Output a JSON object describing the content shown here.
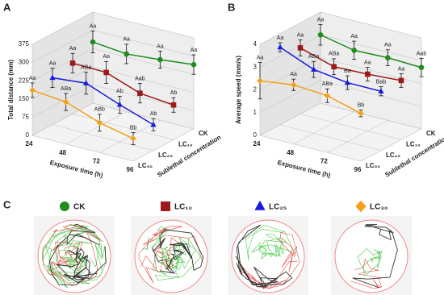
{
  "chart_data": [
    {
      "type": "line3d",
      "panel_label": "A",
      "y_label": "Total distance (mm)",
      "x_label": "Exposure time (h)",
      "depth_label": "Sublethal concentration",
      "x": [
        24,
        48,
        72,
        96
      ],
      "xlim": [
        24,
        96
      ],
      "xticks": [
        24,
        48,
        72,
        96
      ],
      "depth_categories": [
        "LC₃₀",
        "LC₂₅",
        "LC₁₀",
        "CK"
      ],
      "ylim": [
        0,
        375
      ],
      "yticks": [
        0,
        75,
        150,
        225,
        300,
        375
      ],
      "grid": true,
      "series": [
        {
          "name": "CK",
          "color": "#1e8c1e",
          "marker": "circle",
          "values": [
            252,
            238,
            250,
            265
          ],
          "errors": [
            45,
            40,
            35,
            40
          ],
          "letters": [
            "Aa",
            "Aa",
            "Aa",
            "Aa"
          ]
        },
        {
          "name": "LC₁₀",
          "color": "#9e1a1a",
          "marker": "square",
          "values": [
            209,
            206,
            156,
            143
          ],
          "errors": [
            40,
            45,
            40,
            30
          ],
          "letters": [
            "Aa",
            "Aa",
            "Aab",
            "Ab"
          ]
        },
        {
          "name": "LC₂₅",
          "color": "#1a1ae0",
          "marker": "triangle",
          "values": [
            193,
            206,
            153,
            106
          ],
          "errors": [
            40,
            45,
            35,
            25
          ],
          "letters": [
            "Aa",
            "ABa",
            "Ab",
            "Ab"
          ]
        },
        {
          "name": "LC₃₀",
          "color": "#f5a01a",
          "marker": "diamond",
          "values": [
            186,
            173,
            123,
            93
          ],
          "errors": [
            30,
            35,
            35,
            25
          ],
          "letters": [
            "Aa",
            "ABa",
            "ABb",
            "Bb"
          ]
        }
      ]
    },
    {
      "type": "line3d",
      "panel_label": "B",
      "y_label": "Average speed (mm/s)",
      "x_label": "Exposure time (h)",
      "depth_label": "Sublethal concentration",
      "x": [
        24,
        48,
        72,
        96
      ],
      "xlim": [
        24,
        96
      ],
      "xticks": [
        24,
        48,
        72,
        96
      ],
      "depth_categories": [
        "LC₃₀",
        "LC₂₅",
        "LC₁₀",
        "CK"
      ],
      "ylim": [
        0,
        4
      ],
      "yticks": [
        0,
        1,
        2,
        3,
        4
      ],
      "grid": true,
      "series": [
        {
          "name": "CK",
          "color": "#1e8c1e",
          "marker": "circle",
          "values": [
            3.0,
            2.7,
            2.75,
            2.7
          ],
          "errors": [
            0.45,
            0.4,
            0.35,
            0.4
          ],
          "letters": [
            "Aa",
            "Aa",
            "Aa",
            "Aab"
          ]
        },
        {
          "name": "LC₁₀",
          "color": "#9e1a1a",
          "marker": "square",
          "values": [
            2.9,
            2.45,
            2.5,
            2.6
          ],
          "errors": [
            0.35,
            0.35,
            0.3,
            0.3
          ],
          "letters": [
            "Aa",
            "ABa",
            "Aa",
            "Aa"
          ]
        },
        {
          "name": "LC₂₅",
          "color": "#1a1ae0",
          "marker": "triangle",
          "values": [
            3.4,
            2.8,
            2.6,
            2.6
          ],
          "errors": [
            0.2,
            0.35,
            0.3,
            0.2
          ],
          "letters": [
            "Aa",
            "ABa",
            "Ba",
            "Bab"
          ]
        },
        {
          "name": "LC₃₀",
          "color": "#f5a01a",
          "marker": "diamond",
          "values": [
            2.4,
            2.6,
            2.5,
            2.1
          ],
          "errors": [
            0.8,
            0.25,
            0.3,
            0.15
          ],
          "letters": [
            "Aa",
            "Aa",
            "ABa",
            "Bb"
          ]
        }
      ]
    }
  ],
  "panel_c": {
    "panel_label": "C"
  }
}
